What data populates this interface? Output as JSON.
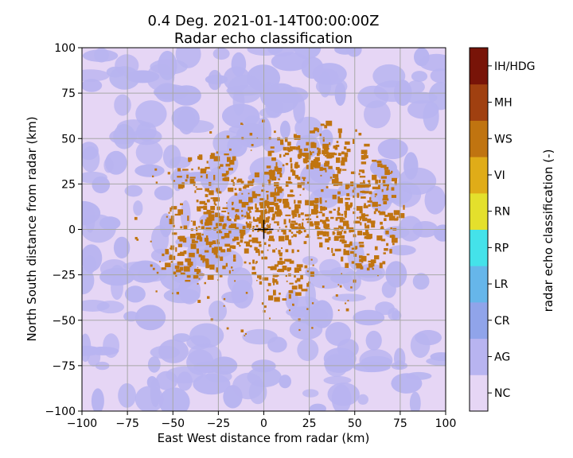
{
  "chart_data": {
    "type": "heatmap",
    "title_line1": "0.4 Deg. 2021-01-14T00:00:00Z",
    "title_line2": "Radar echo classification",
    "xlabel": "East West distance from radar (km)",
    "ylabel": "North South distance from radar (km)",
    "xlim": [
      -100,
      100
    ],
    "ylim": [
      -100,
      100
    ],
    "x_ticks": [
      -100,
      -75,
      -50,
      -25,
      0,
      25,
      50,
      75,
      100
    ],
    "y_ticks": [
      -100,
      -75,
      -50,
      -25,
      0,
      25,
      50,
      75,
      100
    ],
    "x_tick_labels": [
      "−100",
      "−75",
      "−50",
      "−25",
      "0",
      "25",
      "50",
      "75",
      "100"
    ],
    "y_tick_labels": [
      "−100",
      "−75",
      "−50",
      "−25",
      "0",
      "25",
      "50",
      "75",
      "100"
    ],
    "grid": true,
    "radar_marker": [
      0,
      0
    ],
    "colorbar": {
      "label": "radar echo classification (-)",
      "classes": [
        "NC",
        "AG",
        "CR",
        "LR",
        "RP",
        "RN",
        "VI",
        "WS",
        "MH",
        "IH/HDG"
      ],
      "colors": [
        "#e6d6f5",
        "#b8b4f0",
        "#90a4ea",
        "#66b6ea",
        "#44e2ea",
        "#e4e02c",
        "#e0ac18",
        "#c07410",
        "#a04010",
        "#781408"
      ]
    },
    "class_fields": {
      "WS": {
        "class_index": 7,
        "description_regions_center_xy_km": [
          [
            -30,
            30
          ],
          [
            -10,
            12
          ],
          [
            5,
            20
          ],
          [
            20,
            38
          ],
          [
            40,
            45
          ],
          [
            55,
            25
          ],
          [
            60,
            10
          ],
          [
            15,
            5
          ],
          [
            35,
            5
          ],
          [
            -35,
            5
          ],
          [
            -20,
            -10
          ],
          [
            10,
            -25
          ],
          [
            -40,
            -15
          ],
          [
            55,
            -8
          ]
        ]
      }
    }
  }
}
